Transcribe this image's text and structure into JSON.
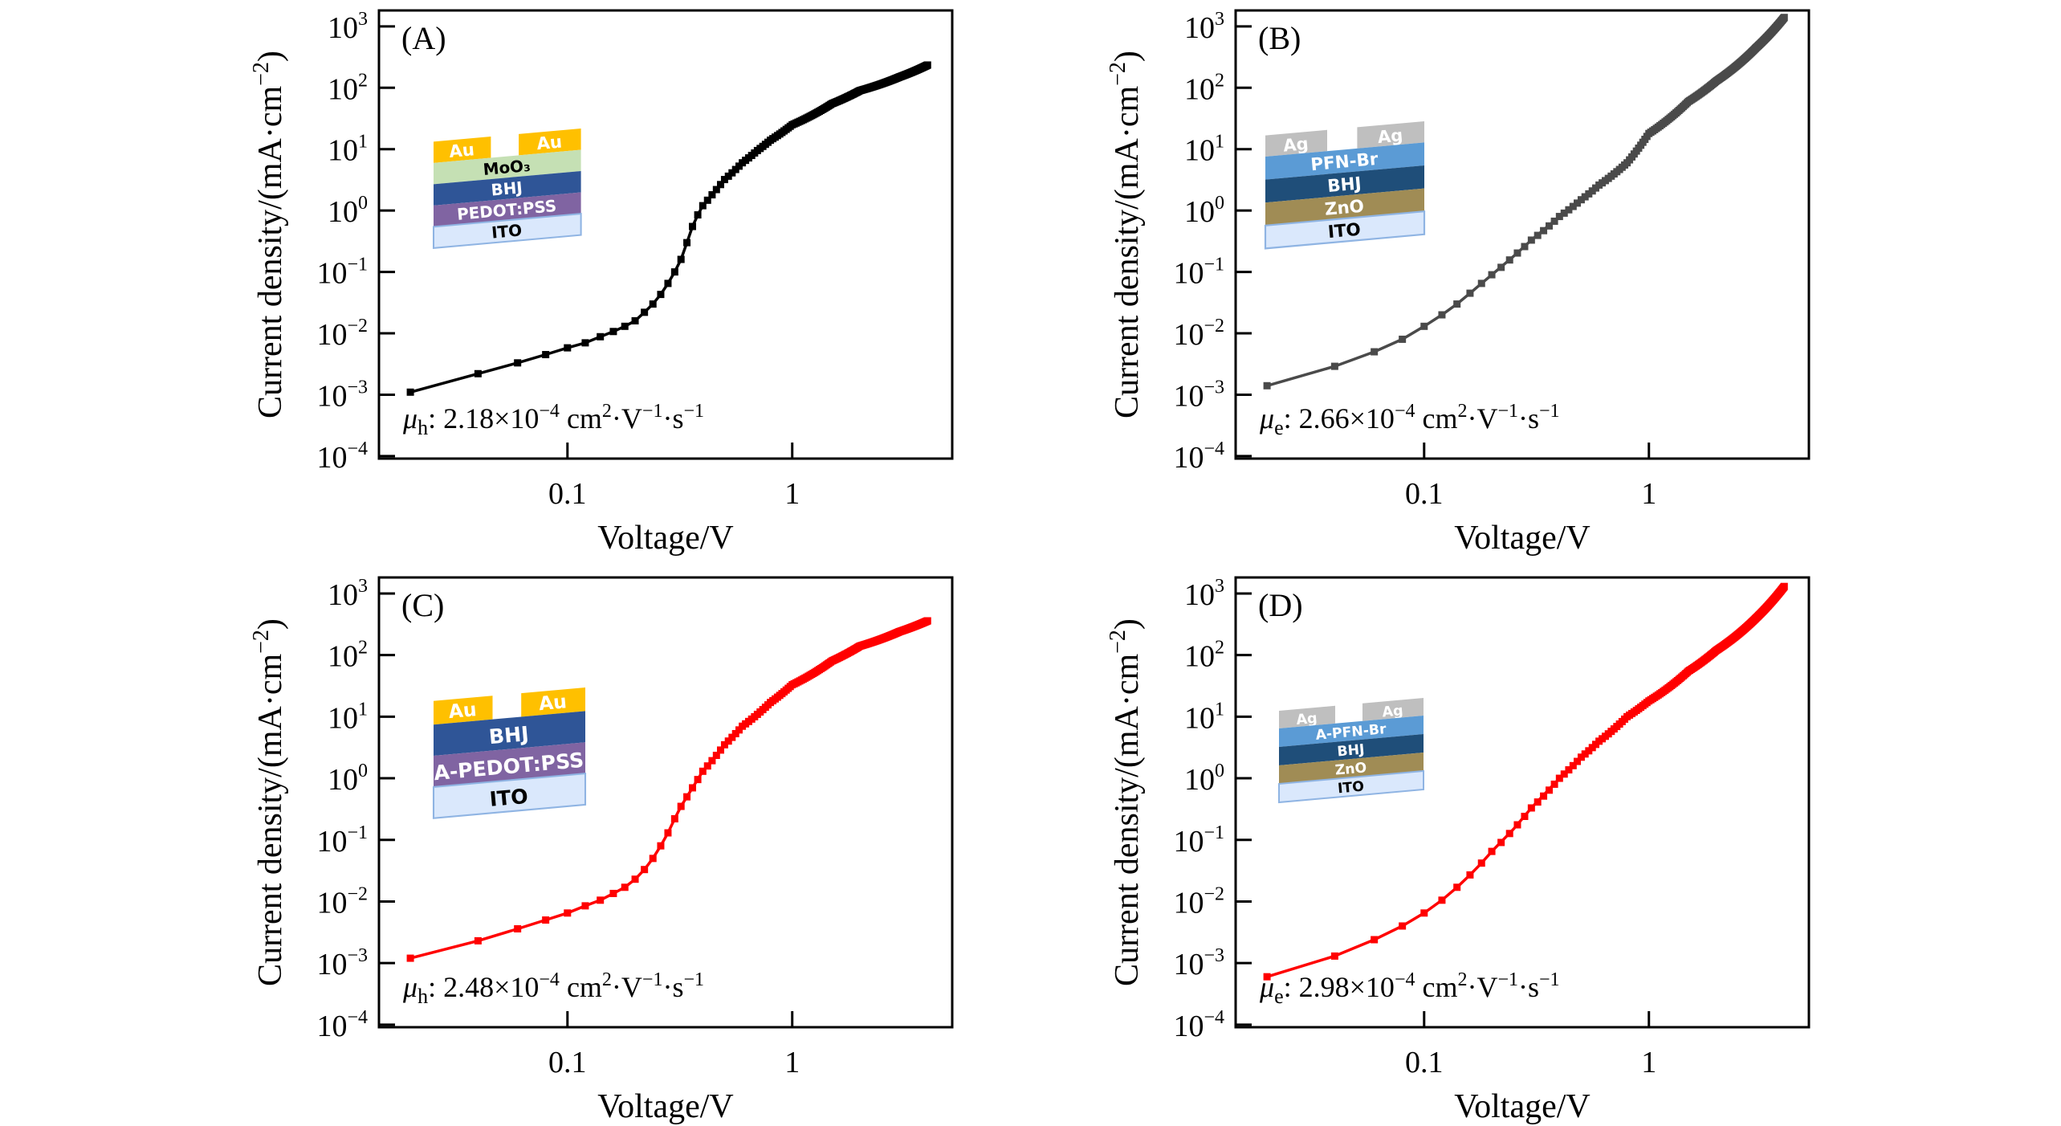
{
  "chart_data": [
    {
      "type": "scatter",
      "panel_label": "(A)",
      "xlabel": "Voltage/V",
      "ylabel": "Current density/(mA·cm",
      "ylabel_exp": "−2",
      "ylabel_close": ")",
      "xscale": "log",
      "yscale": "log",
      "xlim": [
        0.0145,
        5.15
      ],
      "ylim": [
        9.1e-05,
        1820
      ],
      "xticks": [
        0.1,
        1
      ],
      "xtick_labels": [
        "0.1",
        "1"
      ],
      "yticks": [
        1000,
        100,
        10,
        1,
        0.1,
        0.01,
        0.001,
        0.0001
      ],
      "ytick_base": "10",
      "ytick_exps": [
        "3",
        "2",
        "1",
        "0",
        "−1",
        "−2",
        "−3",
        "−4"
      ],
      "grid": false,
      "series_color": "#000000",
      "mobility": {
        "symbol": "μ",
        "sub": "h",
        "text": ": 2.18×10",
        "exp": "−4",
        "unit": " cm",
        "unit_exp": "2",
        "v": "·V",
        "v_exp": "−1",
        "s": "·s",
        "s_exp": "−1"
      },
      "x": [
        0.02,
        0.04,
        0.06,
        0.08,
        0.1,
        0.12,
        0.14,
        0.16,
        0.18,
        0.2,
        0.22,
        0.24,
        0.26,
        0.28,
        0.3,
        0.32,
        0.34,
        0.36,
        0.38,
        0.4,
        0.45,
        0.5,
        0.6,
        0.7,
        0.8,
        1.0,
        1.5,
        2.0,
        3.0,
        4.0
      ],
      "y": [
        0.0011,
        0.0022,
        0.0033,
        0.0045,
        0.0058,
        0.007,
        0.0088,
        0.0107,
        0.013,
        0.016,
        0.022,
        0.03,
        0.043,
        0.065,
        0.1,
        0.16,
        0.3,
        0.55,
        0.85,
        1.2,
        2.0,
        3.2,
        6.0,
        9.5,
        14,
        25,
        55,
        90,
        150,
        235
      ],
      "inset": {
        "electrode": {
          "label": "Au",
          "color": "#FFC000",
          "text_color": "#ffffff"
        },
        "layers": [
          {
            "label": "MoO₃",
            "color": "#C5E0B4",
            "text_color": "#000000"
          },
          {
            "label": "BHJ",
            "color": "#2F5597",
            "text_color": "#ffffff"
          },
          {
            "label": "PEDOT:PSS",
            "color": "#8064A2",
            "text_color": "#ffffff"
          },
          {
            "label": "ITO",
            "color": "#DAE8FC",
            "text_color": "#000000"
          }
        ]
      }
    },
    {
      "type": "scatter",
      "panel_label": "(B)",
      "xlabel": "Voltage/V",
      "ylabel": "Current density/(mA·cm",
      "ylabel_exp": "−2",
      "ylabel_close": ")",
      "xscale": "log",
      "yscale": "log",
      "xlim": [
        0.0145,
        5.15
      ],
      "ylim": [
        9.1e-05,
        1820
      ],
      "xticks": [
        0.1,
        1
      ],
      "xtick_labels": [
        "0.1",
        "1"
      ],
      "yticks": [
        1000,
        100,
        10,
        1,
        0.1,
        0.01,
        0.001,
        0.0001
      ],
      "ytick_base": "10",
      "ytick_exps": [
        "3",
        "2",
        "1",
        "0",
        "−1",
        "−2",
        "−3",
        "−4"
      ],
      "grid": false,
      "series_color": "#4a4a4a",
      "mobility": {
        "symbol": "μ",
        "sub": "e",
        "text": ": 2.66×10",
        "exp": "−4",
        "unit": " cm",
        "unit_exp": "2",
        "v": "·V",
        "v_exp": "−1",
        "s": "·s",
        "s_exp": "−1"
      },
      "x": [
        0.02,
        0.04,
        0.06,
        0.08,
        0.1,
        0.12,
        0.14,
        0.16,
        0.18,
        0.2,
        0.25,
        0.3,
        0.4,
        0.5,
        0.6,
        0.8,
        1.0,
        1.5,
        2.0,
        3.0,
        4.0
      ],
      "y": [
        0.0014,
        0.0029,
        0.005,
        0.008,
        0.013,
        0.02,
        0.03,
        0.045,
        0.065,
        0.09,
        0.18,
        0.33,
        0.8,
        1.5,
        2.6,
        6,
        18,
        60,
        130,
        450,
        1400
      ],
      "inset": {
        "electrode": {
          "label": "Ag",
          "color": "#BFBFBF",
          "text_color": "#ffffff"
        },
        "layers": [
          {
            "label": "PFN-Br",
            "color": "#5B9BD5",
            "text_color": "#ffffff"
          },
          {
            "label": "BHJ",
            "color": "#1F4E79",
            "text_color": "#ffffff"
          },
          {
            "label": "ZnO",
            "color": "#A08C55",
            "text_color": "#ffffff"
          },
          {
            "label": "ITO",
            "color": "#DAE8FC",
            "text_color": "#000000"
          }
        ]
      }
    },
    {
      "type": "scatter",
      "panel_label": "(C)",
      "xlabel": "Voltage/V",
      "ylabel": "Current density/(mA·cm",
      "ylabel_exp": "−2",
      "ylabel_close": ")",
      "xscale": "log",
      "yscale": "log",
      "xlim": [
        0.0145,
        5.15
      ],
      "ylim": [
        9.1e-05,
        1820
      ],
      "xticks": [
        0.1,
        1
      ],
      "xtick_labels": [
        "0.1",
        "1"
      ],
      "yticks": [
        1000,
        100,
        10,
        1,
        0.1,
        0.01,
        0.001,
        0.0001
      ],
      "ytick_base": "10",
      "ytick_exps": [
        "3",
        "2",
        "1",
        "0",
        "−1",
        "−2",
        "−3",
        "−4"
      ],
      "grid": false,
      "series_color": "#FF0000",
      "mobility": {
        "symbol": "μ",
        "sub": "h",
        "text": ": 2.48×10",
        "exp": "−4",
        "unit": " cm",
        "unit_exp": "2",
        "v": "·V",
        "v_exp": "−1",
        "s": "·s",
        "s_exp": "−1"
      },
      "x": [
        0.02,
        0.04,
        0.06,
        0.08,
        0.1,
        0.12,
        0.14,
        0.16,
        0.18,
        0.2,
        0.22,
        0.24,
        0.26,
        0.28,
        0.3,
        0.32,
        0.34,
        0.36,
        0.4,
        0.5,
        0.6,
        0.8,
        1.0,
        1.5,
        2.0,
        3.0,
        4.0
      ],
      "y": [
        0.0012,
        0.0023,
        0.0036,
        0.005,
        0.0065,
        0.0085,
        0.0105,
        0.0135,
        0.017,
        0.023,
        0.033,
        0.05,
        0.08,
        0.13,
        0.22,
        0.35,
        0.5,
        0.7,
        1.3,
        3.5,
        7,
        17,
        33,
        80,
        140,
        240,
        360
      ],
      "inset": {
        "electrode": {
          "label": "Au",
          "color": "#FFC000",
          "text_color": "#ffffff"
        },
        "layers": [
          {
            "label": "BHJ",
            "color": "#2F5597",
            "text_color": "#ffffff"
          },
          {
            "label": "A-PEDOT:PSS",
            "color": "#8064A2",
            "text_color": "#ffffff"
          },
          {
            "label": "ITO",
            "color": "#DAE8FC",
            "text_color": "#000000"
          }
        ]
      }
    },
    {
      "type": "scatter",
      "panel_label": "(D)",
      "xlabel": "Voltage/V",
      "ylabel": "Current density/(mA·cm",
      "ylabel_exp": "−2",
      "ylabel_close": ")",
      "xscale": "log",
      "yscale": "log",
      "xlim": [
        0.0145,
        5.15
      ],
      "ylim": [
        9.1e-05,
        1820
      ],
      "xticks": [
        0.1,
        1
      ],
      "xtick_labels": [
        "0.1",
        "1"
      ],
      "yticks": [
        1000,
        100,
        10,
        1,
        0.1,
        0.01,
        0.001,
        0.0001
      ],
      "ytick_base": "10",
      "ytick_exps": [
        "3",
        "2",
        "1",
        "0",
        "−1",
        "−2",
        "−3",
        "−4"
      ],
      "grid": false,
      "series_color": "#FF0000",
      "mobility": {
        "symbol": "μ",
        "sub": "e",
        "text": ": 2.98×10",
        "exp": "−4",
        "unit": " cm",
        "unit_exp": "2",
        "v": "·V",
        "v_exp": "−1",
        "s": "·s",
        "s_exp": "−1"
      },
      "x": [
        0.02,
        0.04,
        0.06,
        0.08,
        0.1,
        0.12,
        0.14,
        0.16,
        0.18,
        0.2,
        0.25,
        0.3,
        0.4,
        0.5,
        0.6,
        0.8,
        1.0,
        1.5,
        2.0,
        3.0,
        4.0
      ],
      "y": [
        0.0006,
        0.0013,
        0.0024,
        0.004,
        0.0065,
        0.0105,
        0.017,
        0.027,
        0.042,
        0.065,
        0.15,
        0.33,
        1.0,
        2.2,
        4,
        10,
        18,
        55,
        120,
        400,
        1300
      ],
      "inset": {
        "electrode": {
          "label": "Ag",
          "color": "#BFBFBF",
          "text_color": "#ffffff"
        },
        "layers": [
          {
            "label": "A-PFN-Br",
            "color": "#5B9BD5",
            "text_color": "#ffffff"
          },
          {
            "label": "BHJ",
            "color": "#1F4E79",
            "text_color": "#ffffff"
          },
          {
            "label": "ZnO",
            "color": "#A08C55",
            "text_color": "#ffffff"
          },
          {
            "label": "ITO",
            "color": "#DAE8FC",
            "text_color": "#000000"
          }
        ]
      }
    }
  ]
}
